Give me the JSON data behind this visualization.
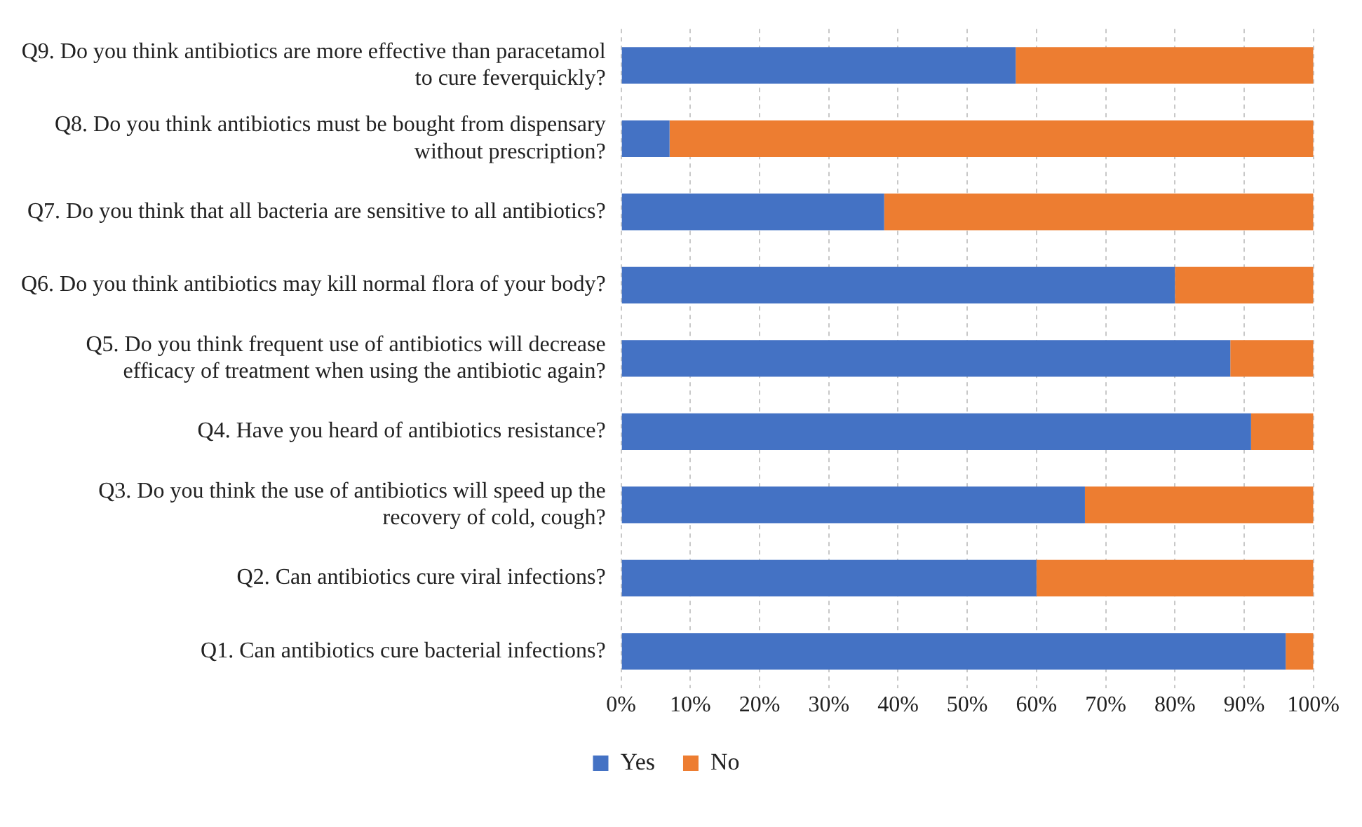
{
  "chart_data": {
    "type": "bar",
    "orientation": "horizontal",
    "stacked": true,
    "categories": [
      "Q9. Do you think antibiotics are more effective than paracetamol to cure feverquickly?",
      "Q8. Do you think antibiotics must be bought from dispensary without prescription?",
      "Q7. Do you think that all bacteria are sensitive to all antibiotics?",
      "Q6. Do you think antibiotics may kill normal flora of your body?",
      "Q5. Do you think frequent use of antibiotics will decrease efficacy of treatment when using the antibiotic again?",
      "Q4. Have you heard of antibiotics resistance?",
      "Q3. Do you think the use of antibiotics will speed up the recovery of cold, cough?",
      "Q2. Can antibiotics cure viral infections?",
      "Q1. Can antibiotics cure bacterial infections?"
    ],
    "series": [
      {
        "name": "Yes",
        "color": "#4472c4",
        "values": [
          57,
          7,
          38,
          80,
          88,
          91,
          67,
          60,
          96
        ]
      },
      {
        "name": "No",
        "color": "#ed7d31",
        "values": [
          43,
          93,
          62,
          20,
          12,
          9,
          33,
          40,
          4
        ]
      }
    ],
    "xlim": [
      0,
      100
    ],
    "xticks": [
      {
        "value": 0,
        "label": "0%"
      },
      {
        "value": 10,
        "label": "10%"
      },
      {
        "value": 20,
        "label": "20%"
      },
      {
        "value": 30,
        "label": "30%"
      },
      {
        "value": 40,
        "label": "40%"
      },
      {
        "value": 50,
        "label": "50%"
      },
      {
        "value": 60,
        "label": "60%"
      },
      {
        "value": 70,
        "label": "70%"
      },
      {
        "value": 80,
        "label": "80%"
      },
      {
        "value": 90,
        "label": "90%"
      },
      {
        "value": 100,
        "label": "100%"
      }
    ],
    "grid": "x",
    "legend": "bottom"
  }
}
